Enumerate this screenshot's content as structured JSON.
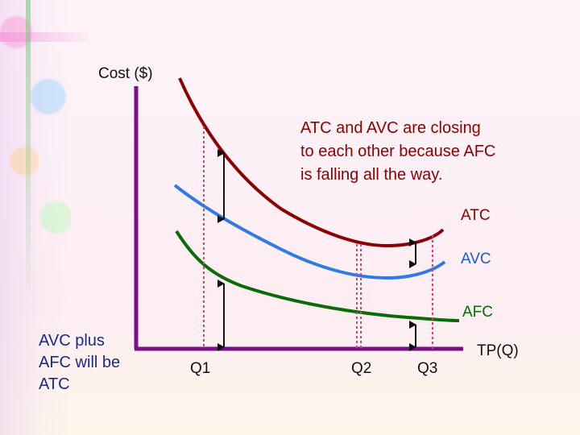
{
  "axes": {
    "y_label": "Cost ($)",
    "x_label": "TP(Q)"
  },
  "curves": {
    "atc_label": "ATC",
    "avc_label": "AVC",
    "afc_label": "AFC",
    "atc_color": "#8b0000",
    "avc_color": "#2f7be6",
    "afc_color": "#0a6b0a"
  },
  "quantity_markers": [
    "Q1",
    "Q2",
    "Q3"
  ],
  "annotation": {
    "lines": [
      "ATC and AVC are closing",
      "to each other because AFC",
      "is falling all the way."
    ]
  },
  "summary": {
    "lines": [
      "AVC plus",
      "AFC will be",
      "ATC"
    ]
  }
}
